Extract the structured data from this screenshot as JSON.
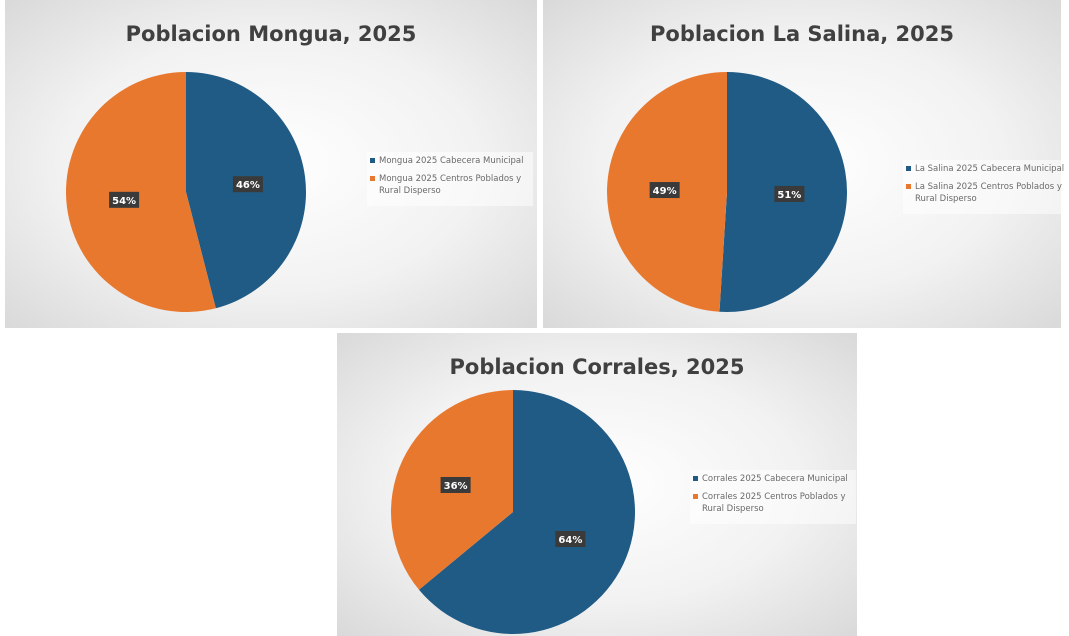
{
  "chart_data": [
    {
      "type": "pie",
      "title": "Poblacion Mongua, 2025",
      "categories": [
        "Mongua 2025 Cabecera Municipal",
        "Mongua 2025 Centros Poblados y Rural Disperso"
      ],
      "values": [
        46,
        54
      ],
      "value_labels": [
        "46%",
        "54%"
      ],
      "colors": [
        "#1f5b84",
        "#e9782f"
      ],
      "legend": "right"
    },
    {
      "type": "pie",
      "title": "Poblacion La Salina, 2025",
      "categories": [
        "La Salina 2025 Cabecera Municipal",
        "La Salina 2025 Centros Poblados y Rural Disperso"
      ],
      "values": [
        51,
        49
      ],
      "value_labels": [
        "51%",
        "49%"
      ],
      "colors": [
        "#1f5b84",
        "#e9782f"
      ],
      "legend": "right"
    },
    {
      "type": "pie",
      "title": "Poblacion Corrales, 2025",
      "categories": [
        "Corrales 2025 Cabecera Municipal",
        "Corrales 2025 Centros Poblados y Rural Disperso"
      ],
      "values": [
        64,
        36
      ],
      "value_labels": [
        "64%",
        "36%"
      ],
      "colors": [
        "#1f5b84",
        "#e9782f"
      ],
      "legend": "right"
    }
  ]
}
